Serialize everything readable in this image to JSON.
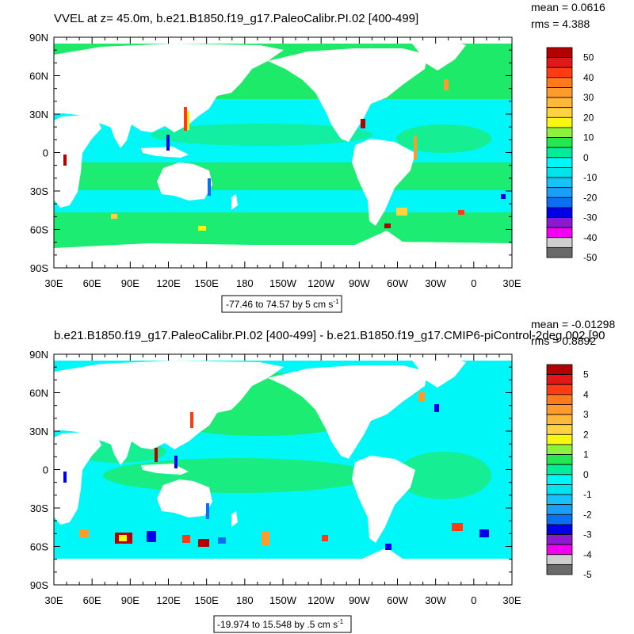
{
  "palette": [
    "#6a6a6a",
    "#cfcfcf",
    "#f100f1",
    "#8a1acf",
    "#0000e8",
    "#0a6ff0",
    "#1a9ff8",
    "#16c2f8",
    "#00e4ee",
    "#00f7f7",
    "#00ec9a",
    "#23e850",
    "#8cf23b",
    "#f7f711",
    "#ffd23f",
    "#ffb838",
    "#ff9b2d",
    "#ff7a1a",
    "#ff3b14",
    "#e01818",
    "#b50000"
  ],
  "chart_data": [
    {
      "type": "heatmap",
      "title": "VVEL at z=  45.0m, b.e21.B1850.f19_g17.PaleoCalibr.PI.02 [400-499]",
      "stats": {
        "mean": "mean = 0.0616",
        "rms": "rms = 4.388"
      },
      "x_ticks": [
        "30E",
        "60E",
        "90E",
        "120E",
        "150E",
        "180",
        "150W",
        "120W",
        "90W",
        "60W",
        "30W",
        "0",
        "30E"
      ],
      "y_ticks": [
        "90N",
        "60N",
        "30N",
        "0",
        "30S",
        "60S",
        "90S"
      ],
      "xlim": [
        30,
        390
      ],
      "ylim": [
        -90,
        90
      ],
      "colorbar": {
        "labels": [
          "50",
          "40",
          "30",
          "20",
          "10",
          "0",
          "-10",
          "-20",
          "-30",
          "-40",
          "-50"
        ],
        "levels": [
          -50,
          50
        ]
      },
      "info_text": "-77.46 to 74.57 by 5 cm s",
      "info_unit_exp": "-1",
      "values": {
        "min": -77.46,
        "max": 74.57,
        "contour_interval": 5,
        "units": "cm s-1"
      }
    },
    {
      "type": "heatmap",
      "title": "b.e21.B1850.f19_g17.PaleoCalibr.PI.02 [400-499] - b.e21.B1850.f19_g17.CMIP6-piControl-2deg.002 [90",
      "stats": {
        "mean": "mean = -0.01298",
        "rms": "rms = 0.8892"
      },
      "x_ticks": [
        "30E",
        "60E",
        "90E",
        "120E",
        "150E",
        "180",
        "150W",
        "120W",
        "90W",
        "60W",
        "30W",
        "0",
        "30E"
      ],
      "y_ticks": [
        "90N",
        "60N",
        "30N",
        "0",
        "30S",
        "60S",
        "90S"
      ],
      "xlim": [
        30,
        390
      ],
      "ylim": [
        -90,
        90
      ],
      "colorbar": {
        "labels": [
          "5",
          "4",
          "3",
          "2",
          "1",
          "0",
          "-1",
          "-2",
          "-3",
          "-4",
          "-5"
        ],
        "levels": [
          -5,
          5
        ]
      },
      "info_text": "-19.974 to 15.548 by .5 cm s",
      "info_unit_exp": "-1",
      "values": {
        "min": -19.974,
        "max": 15.548,
        "contour_interval": 0.5,
        "units": "cm s-1"
      }
    }
  ]
}
